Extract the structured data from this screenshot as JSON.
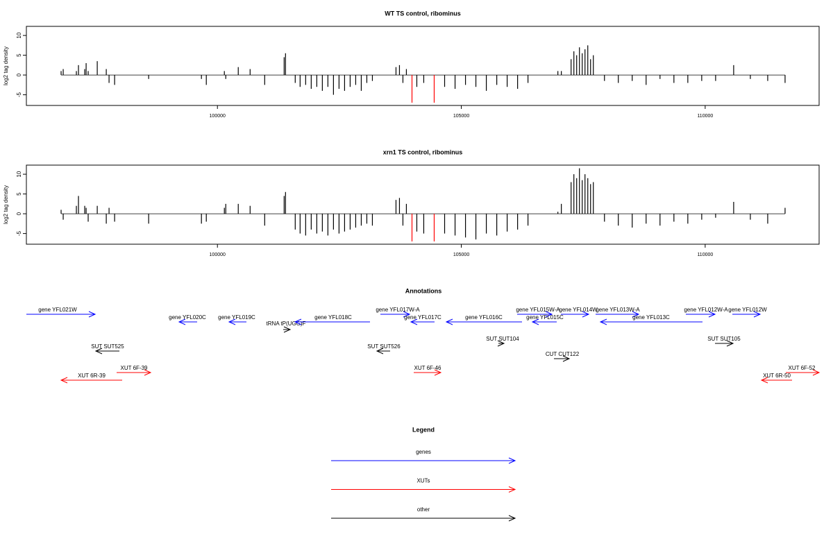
{
  "chart_data": [
    {
      "type": "bar",
      "title": "WT TS control, ribominus",
      "ylabel": "log2 tag density",
      "xlim": [
        96083,
        112336
      ],
      "xticks": [
        100000,
        105000,
        110000
      ],
      "ylim": [
        -7.7,
        12.3
      ],
      "yticks": [
        -5,
        0,
        5,
        10
      ],
      "series": [
        {
          "color": "#000000",
          "x": [
            96795,
            96838,
            97108,
            97151,
            97279,
            97308,
            97350,
            97536,
            97721,
            97778,
            97892,
            98590,
            99672,
            99772,
            100142,
            100171,
            100427,
            100670,
            100969,
            101368,
            101396,
            101595,
            101695,
            101809,
            101923,
            102037,
            102151,
            102265,
            102379,
            102493,
            102607,
            102721,
            102835,
            102949,
            103063,
            103177,
            103661,
            103732,
            103803,
            103874,
            104088,
            104230,
            104658,
            104872,
            105086,
            105299,
            105513,
            105727,
            105940,
            106154,
            106367,
            106980,
            107051,
            107251,
            107308,
            107365,
            107422,
            107479,
            107536,
            107593,
            107650,
            107707,
            107935,
            108219,
            108504,
            108789,
            109074,
            109359,
            109644,
            109929,
            110214,
            110584,
            110926,
            111282,
            111638
          ],
          "values": [
            1,
            1.5,
            1,
            2.5,
            1.5,
            3,
            1,
            3.5,
            1.5,
            -2,
            -2.5,
            -1,
            -1,
            -2.5,
            1,
            -1,
            2,
            1.5,
            -2.5,
            4.5,
            5.5,
            -2,
            -3,
            -2.5,
            -3.5,
            -3,
            -4,
            -3,
            -5,
            -3.5,
            -4,
            -3,
            -2.5,
            -4,
            -2,
            -1.5,
            2,
            2.5,
            -2,
            1.5,
            -3,
            -2,
            -3,
            -3.5,
            -2.5,
            -3,
            -4,
            -2.5,
            -3,
            -3.5,
            -2,
            1,
            1,
            4,
            6,
            5,
            7,
            5.5,
            6.5,
            7.5,
            4,
            5,
            -1.5,
            -2,
            -1.5,
            -2.5,
            -1,
            -2,
            -2,
            -1.5,
            -1.5,
            2.5,
            -1,
            -1.5,
            -2
          ]
        },
        {
          "color": "#ff0000",
          "x": [
            103989,
            104444
          ],
          "values": [
            -7,
            -7
          ]
        }
      ]
    },
    {
      "type": "bar",
      "title": "xrn1 TS control, ribominus",
      "ylabel": "log2 tag density",
      "xlim": [
        96083,
        112336
      ],
      "xticks": [
        100000,
        105000,
        110000
      ],
      "ylim": [
        -7.7,
        12.3
      ],
      "yticks": [
        -5,
        0,
        5,
        10
      ],
      "series": [
        {
          "color": "#000000",
          "x": [
            96795,
            96838,
            97108,
            97151,
            97279,
            97308,
            97350,
            97536,
            97721,
            97778,
            97892,
            98590,
            99672,
            99772,
            100142,
            100171,
            100427,
            100670,
            100969,
            101368,
            101396,
            101595,
            101695,
            101809,
            101923,
            102037,
            102151,
            102265,
            102379,
            102493,
            102607,
            102721,
            102835,
            102949,
            103063,
            103177,
            103661,
            103732,
            103803,
            103874,
            104088,
            104230,
            104658,
            104872,
            105086,
            105299,
            105513,
            105727,
            105940,
            106154,
            106367,
            106980,
            107051,
            107251,
            107308,
            107365,
            107422,
            107479,
            107536,
            107593,
            107650,
            107707,
            107935,
            108219,
            108504,
            108789,
            109074,
            109359,
            109644,
            109929,
            110214,
            110584,
            110926,
            111282,
            111638
          ],
          "values": [
            1,
            -1.5,
            2,
            4.5,
            2,
            1.5,
            -2,
            2,
            -2.5,
            1.5,
            -2,
            -2.5,
            -2.5,
            -2,
            1.5,
            2.5,
            2.5,
            2,
            -3,
            4.5,
            5.5,
            -4,
            -5,
            -5.5,
            -4,
            -5,
            -4.5,
            -5.5,
            -4,
            -5,
            -4.5,
            -4,
            -3.5,
            -3,
            -2.5,
            -3,
            3.5,
            4,
            -3,
            2.5,
            -4.5,
            -5,
            -5,
            -5.5,
            -6,
            -6.5,
            -5,
            -5.5,
            -4.5,
            -4,
            -3,
            0.5,
            2.5,
            8,
            10,
            9,
            11.5,
            8.5,
            10,
            9,
            7.5,
            8,
            -2,
            -3,
            -3.5,
            -2.5,
            -3,
            -2,
            -2.5,
            -1.5,
            -1,
            3,
            -1.5,
            -2.5,
            1.5
          ]
        },
        {
          "color": "#ff0000",
          "x": [
            103989,
            104444
          ],
          "values": [
            -7,
            -7
          ]
        }
      ]
    }
  ],
  "annotations": {
    "title": "Annotations",
    "features": [
      {
        "label": "gene YFL021W",
        "color": "#0000ff"
      },
      {
        "label": "gene YFL020C",
        "color": "#0000ff"
      },
      {
        "label": "gene YFL019C",
        "color": "#0000ff"
      },
      {
        "label": "tRNA tP(UGG)F",
        "color": "#000000"
      },
      {
        "label": "gene YFL018C",
        "color": "#0000ff"
      },
      {
        "label": "gene YFL017W-A",
        "color": "#0000ff"
      },
      {
        "label": "gene YFL017C",
        "color": "#0000ff"
      },
      {
        "label": "gene YFL016C",
        "color": "#0000ff"
      },
      {
        "label": "gene YFL015W-A",
        "color": "#0000ff"
      },
      {
        "label": "gene YFL015C",
        "color": "#0000ff"
      },
      {
        "label": "gene YFL014W",
        "color": "#0000ff"
      },
      {
        "label": "gene YFL013W-A",
        "color": "#0000ff"
      },
      {
        "label": "gene YFL013C",
        "color": "#0000ff"
      },
      {
        "label": "gene YFL012W-A",
        "color": "#0000ff"
      },
      {
        "label": "gene YFL012W",
        "color": "#0000ff"
      },
      {
        "label": "SUT SUT525",
        "color": "#000000"
      },
      {
        "label": "SUT SUT526",
        "color": "#000000"
      },
      {
        "label": "SUT SUT104",
        "color": "#000000"
      },
      {
        "label": "CUT CUT122",
        "color": "#000000"
      },
      {
        "label": "SUT SUT105",
        "color": "#000000"
      },
      {
        "label": "XUT 6F-39",
        "color": "#ff0000"
      },
      {
        "label": "XUT 6R-39",
        "color": "#ff0000"
      },
      {
        "label": "XUT 6F-46",
        "color": "#ff0000"
      },
      {
        "label": "XUT 6F-52",
        "color": "#ff0000"
      },
      {
        "label": "XUT 6R-50",
        "color": "#ff0000"
      }
    ]
  },
  "legend": {
    "title": "Legend",
    "entries": [
      {
        "label": "genes",
        "color": "#0000ff"
      },
      {
        "label": "XUTs",
        "color": "#ff0000"
      },
      {
        "label": "other",
        "color": "#000000"
      }
    ]
  }
}
